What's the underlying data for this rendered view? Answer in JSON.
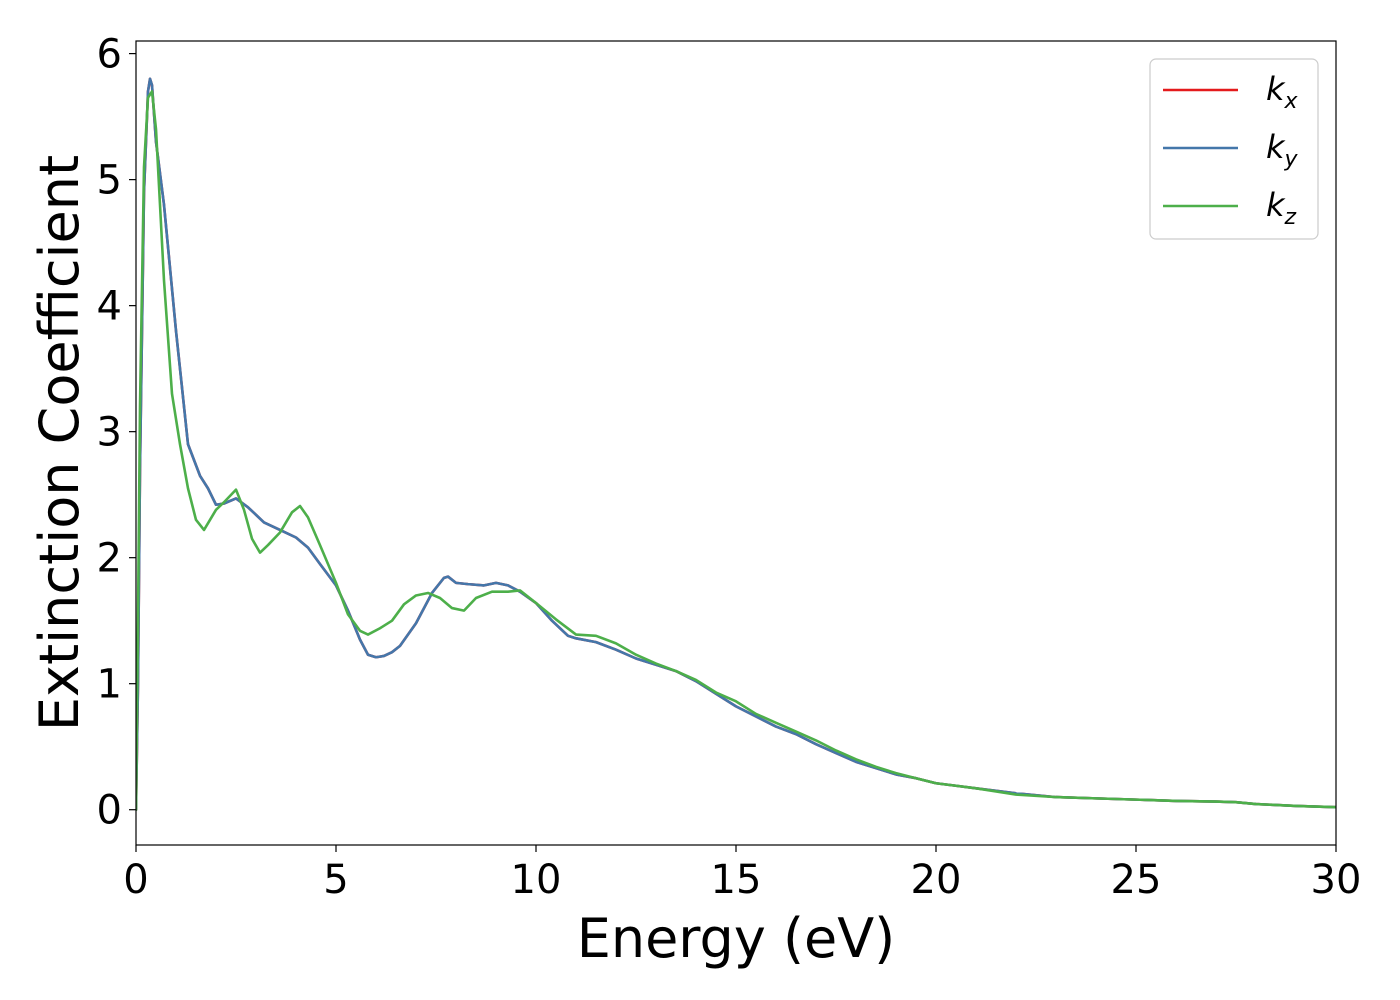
{
  "chart_data": {
    "type": "line",
    "title": "",
    "xlabel": "Energy (eV)",
    "ylabel": "Extinction Coefficient",
    "xlim": [
      0,
      30
    ],
    "ylim": [
      -0.28,
      6.1
    ],
    "xticks": [
      0,
      5,
      10,
      15,
      20,
      25,
      30
    ],
    "yticks": [
      0,
      1,
      2,
      3,
      4,
      5,
      6
    ],
    "grid": false,
    "legend_position": "top-right",
    "series": [
      {
        "name": "k_x",
        "label_base": "k",
        "label_sub": "x",
        "color": "#e41a1c",
        "x": [
          0,
          0.05,
          0.1,
          0.2,
          0.3,
          0.35,
          0.4,
          0.5,
          0.7,
          1.0,
          1.3,
          1.6,
          1.8,
          2.0,
          2.2,
          2.5,
          2.8,
          3.2,
          3.6,
          4.0,
          4.3,
          4.6,
          5.0,
          5.3,
          5.6,
          5.8,
          6.0,
          6.2,
          6.4,
          6.6,
          7.0,
          7.4,
          7.7,
          7.8,
          8.0,
          8.3,
          8.7,
          9.0,
          9.3,
          9.6,
          10.0,
          10.4,
          10.8,
          11.0,
          11.5,
          12.0,
          12.5,
          13.0,
          13.5,
          14.0,
          14.5,
          15.0,
          15.5,
          16.0,
          16.5,
          17.0,
          17.5,
          18.0,
          18.5,
          19.0,
          19.5,
          20.0,
          20.5,
          21.0,
          22.0,
          23.0,
          24.0,
          25.0,
          26.0,
          27.0,
          27.5,
          28.0,
          29.0,
          30.0
        ],
        "y": [
          0,
          1.0,
          2.7,
          4.9,
          5.7,
          5.8,
          5.75,
          5.3,
          4.8,
          3.8,
          2.9,
          2.65,
          2.55,
          2.42,
          2.43,
          2.47,
          2.4,
          2.28,
          2.22,
          2.16,
          2.08,
          1.95,
          1.78,
          1.58,
          1.35,
          1.23,
          1.21,
          1.22,
          1.25,
          1.3,
          1.48,
          1.72,
          1.84,
          1.85,
          1.8,
          1.79,
          1.78,
          1.8,
          1.78,
          1.73,
          1.64,
          1.5,
          1.38,
          1.36,
          1.33,
          1.27,
          1.2,
          1.15,
          1.1,
          1.02,
          0.92,
          0.82,
          0.74,
          0.66,
          0.6,
          0.52,
          0.45,
          0.38,
          0.33,
          0.28,
          0.25,
          0.21,
          0.19,
          0.17,
          0.13,
          0.1,
          0.09,
          0.08,
          0.07,
          0.065,
          0.06,
          0.045,
          0.03,
          0.02
        ]
      },
      {
        "name": "k_y",
        "label_base": "k",
        "label_sub": "y",
        "color": "#4477aa",
        "x": [
          0,
          0.05,
          0.1,
          0.2,
          0.3,
          0.35,
          0.4,
          0.5,
          0.7,
          1.0,
          1.3,
          1.6,
          1.8,
          2.0,
          2.2,
          2.5,
          2.8,
          3.2,
          3.6,
          4.0,
          4.3,
          4.6,
          5.0,
          5.3,
          5.6,
          5.8,
          6.0,
          6.2,
          6.4,
          6.6,
          7.0,
          7.4,
          7.7,
          7.8,
          8.0,
          8.3,
          8.7,
          9.0,
          9.3,
          9.6,
          10.0,
          10.4,
          10.8,
          11.0,
          11.5,
          12.0,
          12.5,
          13.0,
          13.5,
          14.0,
          14.5,
          15.0,
          15.5,
          16.0,
          16.5,
          17.0,
          17.5,
          18.0,
          18.5,
          19.0,
          19.5,
          20.0,
          20.5,
          21.0,
          22.0,
          23.0,
          24.0,
          25.0,
          26.0,
          27.0,
          27.5,
          28.0,
          29.0,
          30.0
        ],
        "y": [
          0,
          1.0,
          2.7,
          4.9,
          5.7,
          5.8,
          5.75,
          5.3,
          4.8,
          3.8,
          2.9,
          2.65,
          2.55,
          2.42,
          2.43,
          2.47,
          2.4,
          2.28,
          2.22,
          2.16,
          2.08,
          1.95,
          1.78,
          1.58,
          1.35,
          1.23,
          1.21,
          1.22,
          1.25,
          1.3,
          1.48,
          1.72,
          1.84,
          1.85,
          1.8,
          1.79,
          1.78,
          1.8,
          1.78,
          1.73,
          1.64,
          1.5,
          1.38,
          1.36,
          1.33,
          1.27,
          1.2,
          1.15,
          1.1,
          1.02,
          0.92,
          0.82,
          0.74,
          0.66,
          0.6,
          0.52,
          0.45,
          0.38,
          0.33,
          0.28,
          0.25,
          0.21,
          0.19,
          0.17,
          0.13,
          0.1,
          0.09,
          0.08,
          0.07,
          0.065,
          0.06,
          0.045,
          0.03,
          0.02
        ]
      },
      {
        "name": "k_z",
        "label_base": "k",
        "label_sub": "z",
        "color": "#4daf4a",
        "x": [
          0,
          0.05,
          0.1,
          0.2,
          0.3,
          0.4,
          0.5,
          0.7,
          0.9,
          1.1,
          1.3,
          1.5,
          1.7,
          2.0,
          2.2,
          2.5,
          2.7,
          2.9,
          3.1,
          3.3,
          3.6,
          3.9,
          4.1,
          4.3,
          4.6,
          5.0,
          5.3,
          5.6,
          5.8,
          6.1,
          6.4,
          6.7,
          7.0,
          7.3,
          7.6,
          7.9,
          8.2,
          8.5,
          8.9,
          9.3,
          9.6,
          10.0,
          10.5,
          11.0,
          11.5,
          12.0,
          12.5,
          13.0,
          13.5,
          14.0,
          14.5,
          15.0,
          15.5,
          16.0,
          16.5,
          17.0,
          17.5,
          18.0,
          18.5,
          19.0,
          19.5,
          20.0,
          20.5,
          21.0,
          22.0,
          23.0,
          24.0,
          25.0,
          26.0,
          27.0,
          27.5,
          28.0,
          29.0,
          30.0
        ],
        "y": [
          0,
          1.5,
          3.2,
          5.1,
          5.65,
          5.7,
          5.4,
          4.2,
          3.3,
          2.9,
          2.55,
          2.3,
          2.22,
          2.38,
          2.44,
          2.54,
          2.38,
          2.15,
          2.04,
          2.1,
          2.2,
          2.36,
          2.41,
          2.32,
          2.1,
          1.8,
          1.55,
          1.42,
          1.39,
          1.44,
          1.5,
          1.63,
          1.7,
          1.72,
          1.68,
          1.6,
          1.58,
          1.68,
          1.73,
          1.73,
          1.74,
          1.64,
          1.51,
          1.39,
          1.38,
          1.32,
          1.23,
          1.16,
          1.1,
          1.03,
          0.93,
          0.86,
          0.76,
          0.69,
          0.62,
          0.55,
          0.47,
          0.4,
          0.34,
          0.29,
          0.25,
          0.21,
          0.19,
          0.17,
          0.12,
          0.1,
          0.09,
          0.08,
          0.07,
          0.065,
          0.06,
          0.045,
          0.03,
          0.02
        ]
      }
    ]
  }
}
